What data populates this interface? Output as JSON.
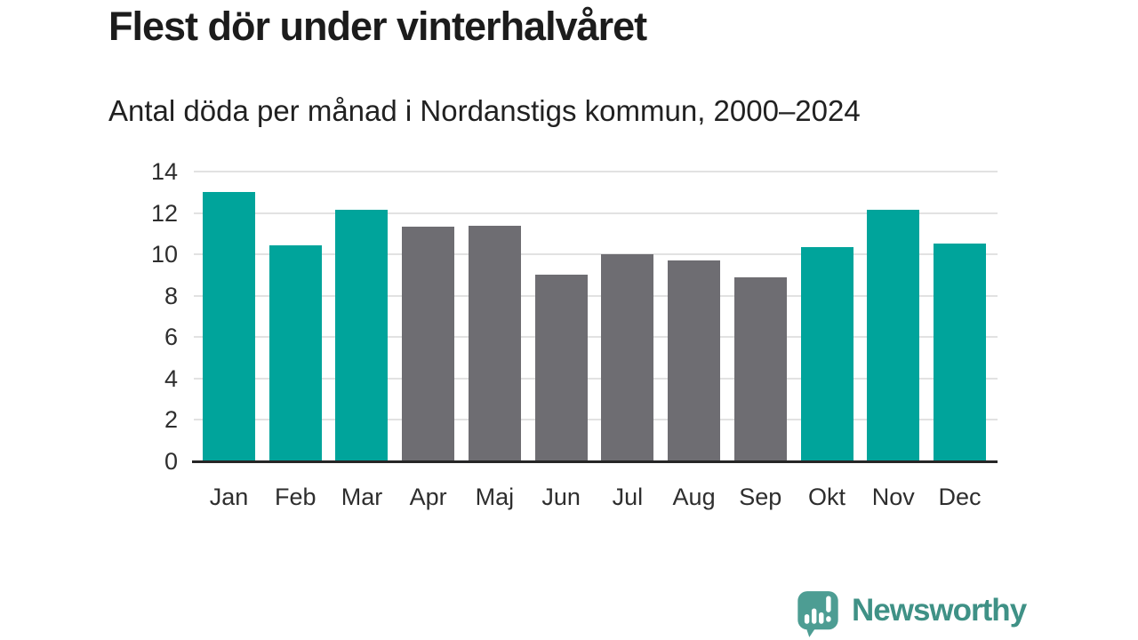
{
  "title": "Flest dör under vinterhalvåret",
  "subtitle": "Antal döda per månad i Nordanstigs kommun, 2000–2024",
  "colors": {
    "highlight": "#00a49b",
    "muted": "#6e6d72",
    "grid": "#e2e2e2",
    "axis": "#262626",
    "tick_text": "#2e2e2e",
    "logo_icon": "#4d9d93",
    "logo_text": "#3f9186"
  },
  "chart_data": {
    "type": "bar",
    "title": "Flest dör under vinterhalvåret",
    "subtitle": "Antal döda per månad i Nordanstigs kommun, 2000–2024",
    "categories": [
      "Jan",
      "Feb",
      "Mar",
      "Apr",
      "Maj",
      "Jun",
      "Jul",
      "Aug",
      "Sep",
      "Okt",
      "Nov",
      "Dec"
    ],
    "values": [
      13.0,
      10.45,
      12.15,
      11.35,
      11.4,
      9.0,
      10.0,
      9.7,
      8.9,
      10.35,
      12.15,
      10.5
    ],
    "bar_colors": [
      "#00a49b",
      "#00a49b",
      "#00a49b",
      "#6e6d72",
      "#6e6d72",
      "#6e6d72",
      "#6e6d72",
      "#6e6d72",
      "#6e6d72",
      "#00a49b",
      "#00a49b",
      "#00a49b"
    ],
    "xlabel": "",
    "ylabel": "",
    "ylim": [
      0,
      14
    ],
    "yticks": [
      0,
      2,
      4,
      6,
      8,
      10,
      12,
      14
    ],
    "grid": true,
    "legend": false,
    "orientation": "vertical"
  },
  "branding": {
    "name": "Newsworthy",
    "icon": "newsworthy-bar-chart-speech-bubble-icon"
  }
}
